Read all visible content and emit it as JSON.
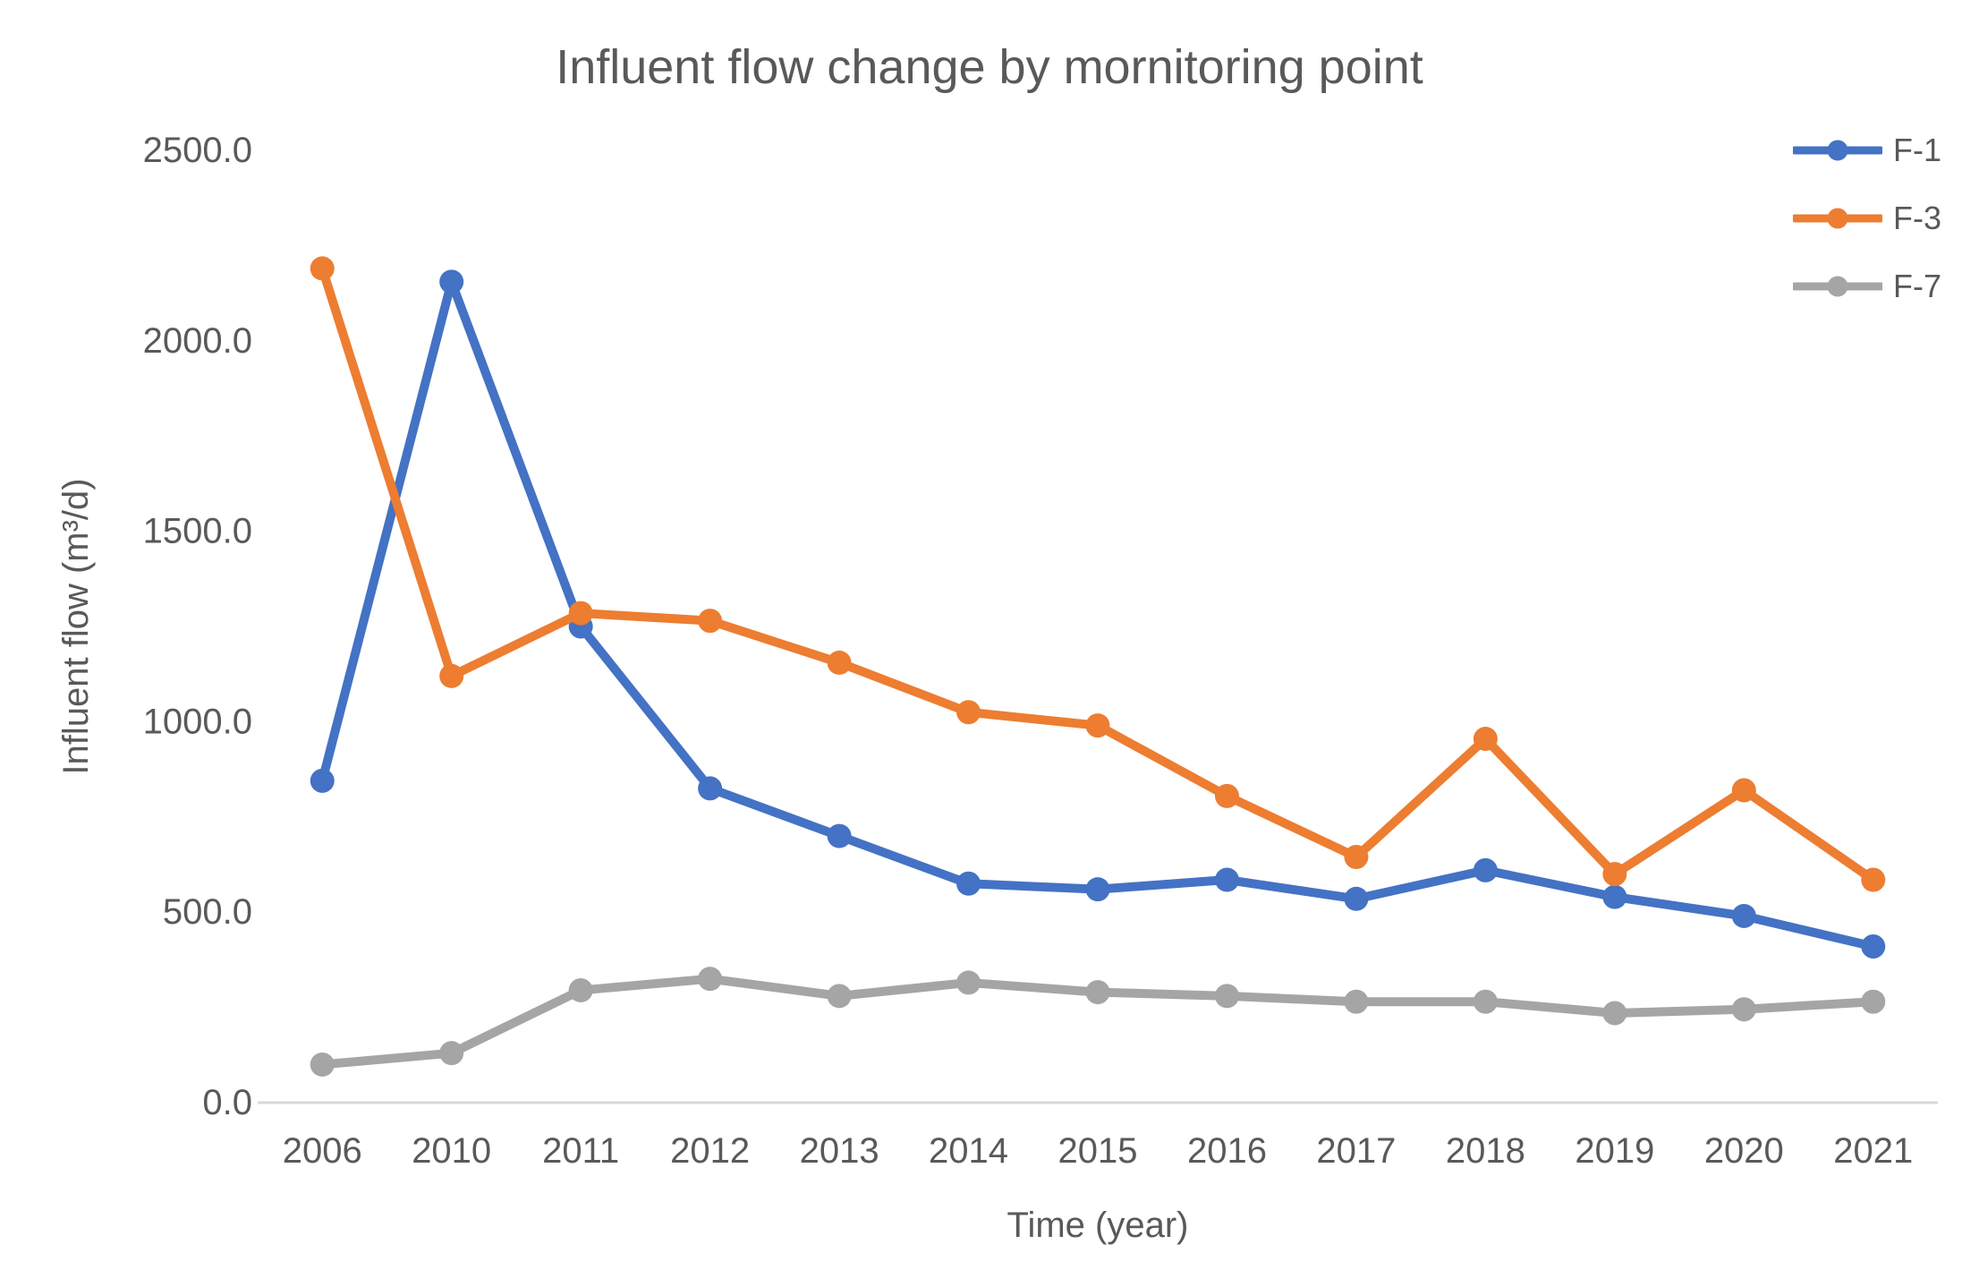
{
  "title": "Influent flow change by mornitoring point",
  "chart_data": {
    "type": "line",
    "title": "Influent flow change by mornitoring point",
    "xlabel": "Time (year)",
    "ylabel": "Influent flow (m³/d)",
    "categories": [
      "2006",
      "2010",
      "2011",
      "2012",
      "2013",
      "2014",
      "2015",
      "2016",
      "2017",
      "2018",
      "2019",
      "2020",
      "2021"
    ],
    "series": [
      {
        "name": "F-1",
        "color": "#4472C4",
        "values": [
          845,
          2155,
          1250,
          825,
          700,
          575,
          560,
          585,
          535,
          610,
          540,
          490,
          410
        ]
      },
      {
        "name": "F-3",
        "color": "#ED7D31",
        "values": [
          2190,
          1120,
          1285,
          1265,
          1155,
          1025,
          990,
          805,
          645,
          955,
          600,
          820,
          585
        ]
      },
      {
        "name": "F-7",
        "color": "#A5A5A5",
        "values": [
          100,
          130,
          295,
          325,
          280,
          315,
          290,
          280,
          265,
          265,
          235,
          245,
          265
        ]
      }
    ],
    "ylim": [
      0,
      2500
    ],
    "ytick_step": 500,
    "ytick_decimals": 1,
    "grid": false,
    "legend_position": "right-top"
  },
  "colors": {
    "text": "#595959",
    "axis_line": "#D9D9D9",
    "background": "#FFFFFF"
  }
}
